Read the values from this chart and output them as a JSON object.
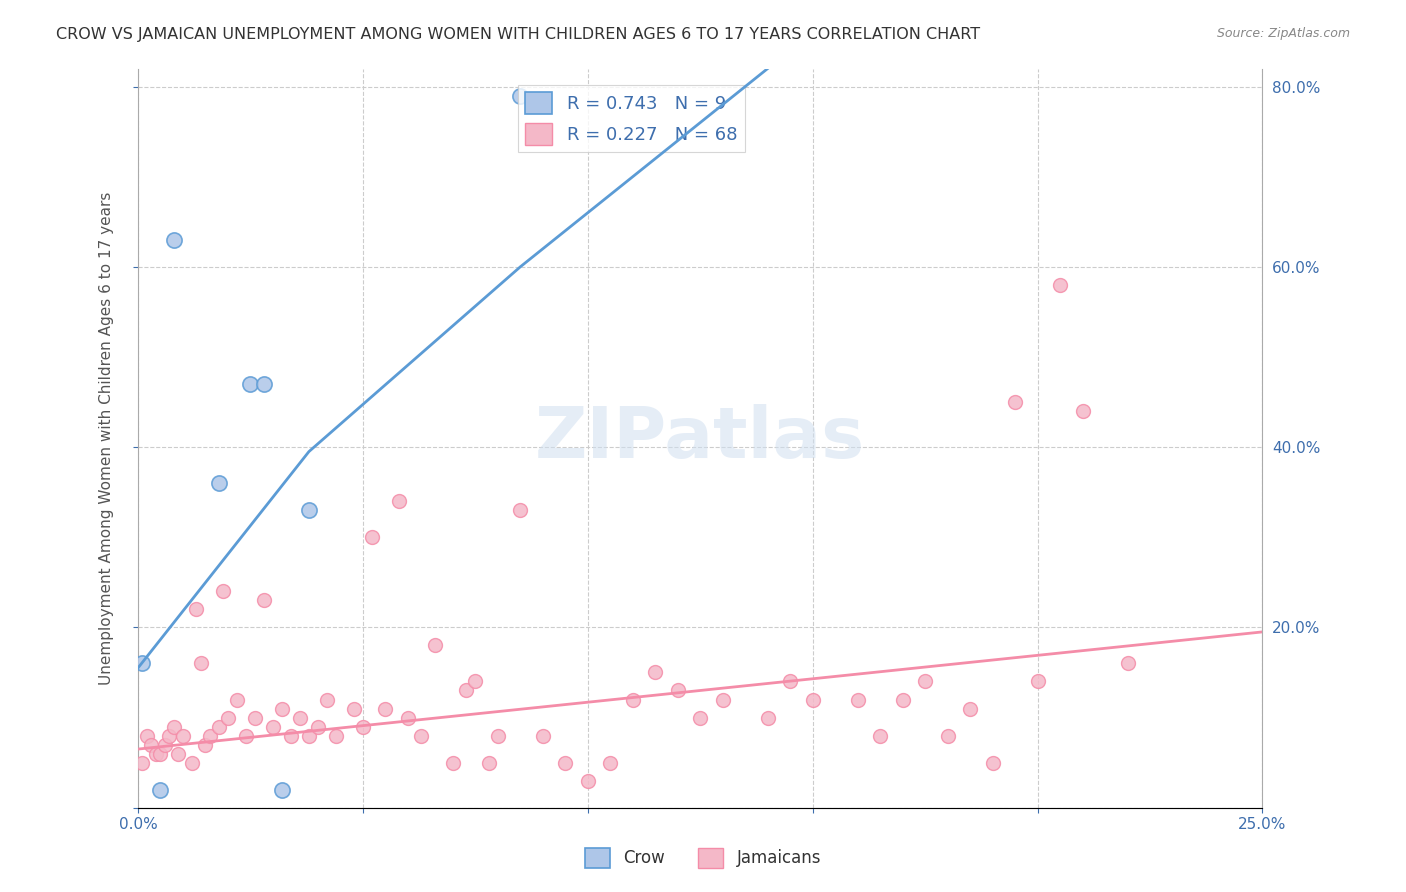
{
  "title": "CROW VS JAMAICAN UNEMPLOYMENT AMONG WOMEN WITH CHILDREN AGES 6 TO 17 YEARS CORRELATION CHART",
  "source": "Source: ZipAtlas.com",
  "xlabel_label": "",
  "ylabel_label": "Unemployment Among Women with Children Ages 6 to 17 years",
  "x_min": 0.0,
  "x_max": 0.25,
  "y_min": 0.0,
  "y_max": 0.82,
  "x_ticks": [
    0.0,
    0.05,
    0.1,
    0.15,
    0.2,
    0.25
  ],
  "x_tick_labels": [
    "0.0%",
    "",
    "",
    "",
    "",
    "25.0%"
  ],
  "y_ticks": [
    0.0,
    0.2,
    0.4,
    0.6,
    0.8
  ],
  "y_tick_labels": [
    "",
    "20.0%",
    "40.0%",
    "60.0%",
    "80.0%"
  ],
  "crow_R": "0.743",
  "crow_N": "9",
  "jamaican_R": "0.227",
  "jamaican_N": "68",
  "crow_color": "#aec6e8",
  "jamaican_color": "#f4b8c8",
  "crow_line_color": "#5b9bd5",
  "jamaican_line_color": "#f48ca8",
  "legend_text_color": "#3e6ead",
  "title_color": "#333333",
  "axis_color": "#aaaaaa",
  "grid_color": "#cccccc",
  "watermark": "ZIPatlas",
  "crow_scatter_x": [
    0.001,
    0.005,
    0.008,
    0.018,
    0.025,
    0.028,
    0.032,
    0.038,
    0.085
  ],
  "crow_scatter_y": [
    0.16,
    0.02,
    0.63,
    0.36,
    0.47,
    0.47,
    0.02,
    0.33,
    0.79
  ],
  "crow_line_x": [
    0.0,
    0.038,
    0.085,
    0.14
  ],
  "crow_line_y": [
    0.155,
    0.395,
    0.6,
    0.82
  ],
  "jamaican_scatter_x": [
    0.001,
    0.002,
    0.003,
    0.004,
    0.005,
    0.006,
    0.007,
    0.008,
    0.009,
    0.01,
    0.012,
    0.013,
    0.014,
    0.015,
    0.016,
    0.018,
    0.019,
    0.02,
    0.022,
    0.024,
    0.026,
    0.028,
    0.03,
    0.032,
    0.034,
    0.036,
    0.038,
    0.04,
    0.042,
    0.044,
    0.048,
    0.05,
    0.052,
    0.055,
    0.058,
    0.06,
    0.063,
    0.066,
    0.07,
    0.073,
    0.075,
    0.078,
    0.08,
    0.085,
    0.09,
    0.095,
    0.1,
    0.105,
    0.11,
    0.115,
    0.12,
    0.125,
    0.13,
    0.14,
    0.145,
    0.15,
    0.16,
    0.165,
    0.17,
    0.175,
    0.18,
    0.185,
    0.19,
    0.195,
    0.2,
    0.205,
    0.21,
    0.22
  ],
  "jamaican_scatter_y": [
    0.05,
    0.08,
    0.07,
    0.06,
    0.06,
    0.07,
    0.08,
    0.09,
    0.06,
    0.08,
    0.05,
    0.22,
    0.16,
    0.07,
    0.08,
    0.09,
    0.24,
    0.1,
    0.12,
    0.08,
    0.1,
    0.23,
    0.09,
    0.11,
    0.08,
    0.1,
    0.08,
    0.09,
    0.12,
    0.08,
    0.11,
    0.09,
    0.3,
    0.11,
    0.34,
    0.1,
    0.08,
    0.18,
    0.05,
    0.13,
    0.14,
    0.05,
    0.08,
    0.33,
    0.08,
    0.05,
    0.03,
    0.05,
    0.12,
    0.15,
    0.13,
    0.1,
    0.12,
    0.1,
    0.14,
    0.12,
    0.12,
    0.08,
    0.12,
    0.14,
    0.08,
    0.11,
    0.05,
    0.45,
    0.14,
    0.58,
    0.44,
    0.16
  ],
  "jamaican_line_x": [
    0.0,
    0.25
  ],
  "jamaican_line_y": [
    0.065,
    0.195
  ]
}
